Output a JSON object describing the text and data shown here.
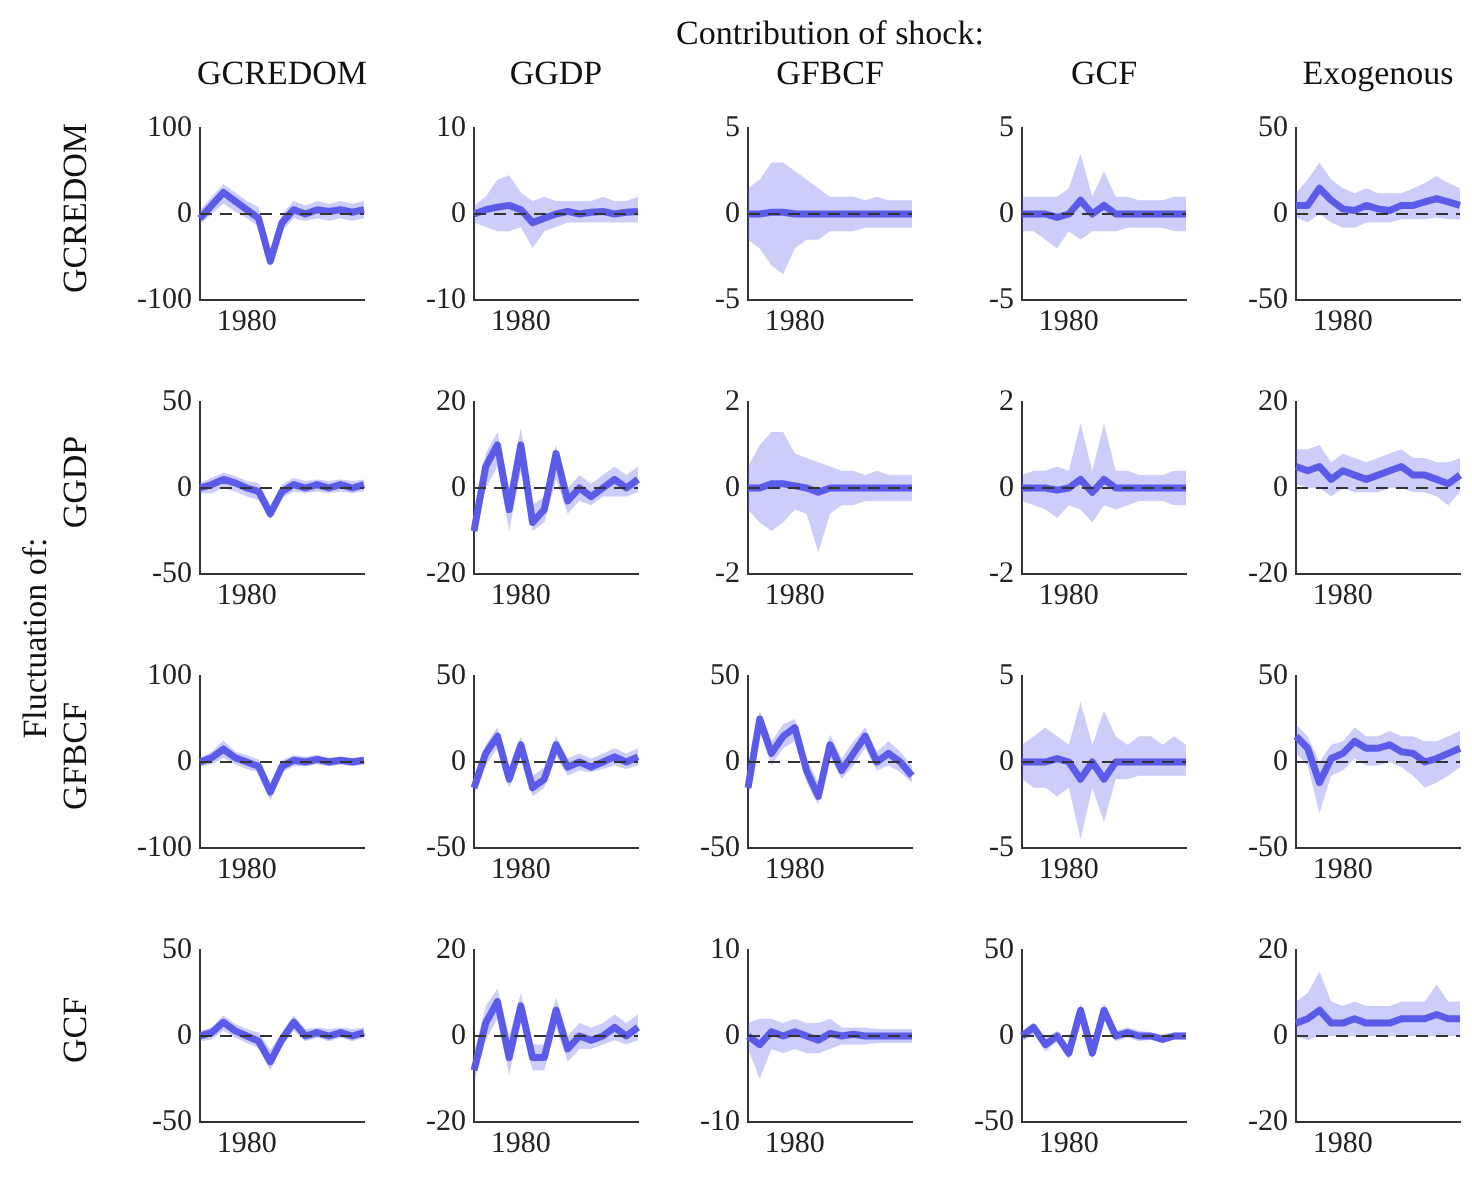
{
  "chart_data": [
    {
      "type": "line",
      "title": "GCREDOM",
      "ylabel": "GCREDOM",
      "categories": [
        null,
        null,
        null,
        null,
        "1980",
        null,
        null,
        null,
        null,
        null,
        null,
        null,
        null,
        null,
        null
      ],
      "ylim": [
        -100,
        100
      ],
      "yticks": [
        -100,
        0,
        100
      ],
      "ref_lines": [
        {
          "axis": "y",
          "value": 0,
          "color": "#333333",
          "line_style": "dashed"
        }
      ],
      "series": [
        {
          "color": "#5b5bea",
          "values": [
            -5,
            10,
            25,
            15,
            5,
            -5,
            -55,
            -10,
            5,
            0,
            5,
            3,
            5,
            2,
            5
          ],
          "lower": [
            -12,
            0,
            12,
            3,
            -5,
            -15,
            -60,
            -20,
            -5,
            -8,
            -5,
            -8,
            -5,
            -8,
            -5
          ],
          "upper": [
            5,
            20,
            35,
            25,
            15,
            8,
            -45,
            0,
            15,
            10,
            15,
            12,
            15,
            12,
            15
          ]
        }
      ]
    },
    {
      "type": "line",
      "title": "GGDP",
      "categories": [
        null,
        null,
        null,
        null,
        "1980",
        null,
        null,
        null,
        null,
        null,
        null,
        null,
        null,
        null,
        null
      ],
      "ylim": [
        -10,
        10
      ],
      "yticks": [
        -10,
        0,
        10
      ],
      "ref_lines": [
        {
          "axis": "y",
          "value": 0,
          "color": "#333333",
          "line_style": "dashed"
        }
      ],
      "series": [
        {
          "color": "#5b5bea",
          "values": [
            0,
            0.5,
            0.8,
            1,
            0.5,
            -1,
            -0.5,
            0,
            0.3,
            0,
            0.2,
            0.3,
            0,
            0.2,
            0.3
          ],
          "lower": [
            -1,
            -1.5,
            -2,
            -2,
            -1.5,
            -4,
            -2,
            -1.5,
            -1,
            -1,
            -1,
            -1,
            -1,
            -1,
            -1
          ],
          "upper": [
            1,
            2,
            4,
            4.5,
            2.5,
            1.5,
            2,
            1.5,
            1.5,
            1.5,
            1.5,
            2,
            1.5,
            1.5,
            2
          ]
        }
      ]
    },
    {
      "type": "line",
      "title": "GFBCF",
      "annotations": [
        "Contribution of shock:"
      ],
      "categories": [
        null,
        null,
        null,
        null,
        "1980",
        null,
        null,
        null,
        null,
        null,
        null,
        null,
        null,
        null,
        null
      ],
      "ylim": [
        -5,
        5
      ],
      "yticks": [
        -5,
        0,
        5
      ],
      "ref_lines": [
        {
          "axis": "y",
          "value": 0,
          "color": "#333333",
          "line_style": "dashed"
        }
      ],
      "series": [
        {
          "color": "#5b5bea",
          "values": [
            0,
            0,
            0.1,
            0.1,
            0,
            0,
            0,
            0,
            0,
            0,
            0,
            0,
            0,
            0,
            0
          ],
          "lower": [
            -1.5,
            -2,
            -3,
            -3.5,
            -2,
            -1.5,
            -1.5,
            -1,
            -1,
            -1,
            -0.8,
            -0.8,
            -0.8,
            -0.8,
            -0.8
          ],
          "upper": [
            1.5,
            2,
            3,
            3,
            2.5,
            2,
            1.5,
            1,
            1,
            1,
            0.8,
            1,
            0.8,
            0.8,
            0.8
          ]
        }
      ]
    },
    {
      "type": "line",
      "title": "GCF",
      "categories": [
        null,
        null,
        null,
        null,
        "1980",
        null,
        null,
        null,
        null,
        null,
        null,
        null,
        null,
        null,
        null
      ],
      "ylim": [
        -5,
        5
      ],
      "yticks": [
        -5,
        0,
        5
      ],
      "ref_lines": [
        {
          "axis": "y",
          "value": 0,
          "color": "#333333",
          "line_style": "dashed"
        }
      ],
      "series": [
        {
          "color": "#5b5bea",
          "values": [
            0,
            0,
            0,
            -0.2,
            0,
            0.8,
            0,
            0.5,
            0,
            0,
            0,
            0,
            0,
            0,
            0
          ],
          "lower": [
            -1,
            -1,
            -1.5,
            -2,
            -1,
            -1.5,
            -1,
            -1,
            -1,
            -0.8,
            -0.8,
            -0.8,
            -0.8,
            -1,
            -1
          ],
          "upper": [
            1,
            1,
            1,
            1,
            1.5,
            3.5,
            1,
            2.5,
            1,
            1,
            0.8,
            0.8,
            0.8,
            1,
            1
          ]
        }
      ]
    },
    {
      "type": "line",
      "title": "Exogenous",
      "categories": [
        null,
        null,
        null,
        null,
        "1980",
        null,
        null,
        null,
        null,
        null,
        null,
        null,
        null,
        null,
        null
      ],
      "ylim": [
        -50,
        50
      ],
      "yticks": [
        -50,
        0,
        50
      ],
      "ref_lines": [
        {
          "axis": "y",
          "value": 0,
          "color": "#333333",
          "line_style": "dashed"
        }
      ],
      "series": [
        {
          "color": "#5b5bea",
          "values": [
            5,
            5,
            15,
            8,
            3,
            2,
            5,
            3,
            2,
            5,
            5,
            7,
            9,
            7,
            5
          ],
          "lower": [
            -2,
            -5,
            0,
            -5,
            -8,
            -8,
            -5,
            -5,
            -5,
            -3,
            -3,
            -3,
            -2,
            -3,
            -3
          ],
          "upper": [
            12,
            20,
            30,
            20,
            15,
            12,
            15,
            12,
            12,
            12,
            15,
            18,
            22,
            18,
            15
          ]
        }
      ]
    },
    {
      "type": "line",
      "ylabel": "GGDP",
      "annotations": [
        "Fluctuation of:"
      ],
      "categories": [
        null,
        null,
        null,
        null,
        "1980",
        null,
        null,
        null,
        null,
        null,
        null,
        null,
        null,
        null,
        null
      ],
      "ylim": [
        -50,
        50
      ],
      "yticks": [
        -50,
        0,
        50
      ],
      "ref_lines": [
        {
          "axis": "y",
          "value": 0,
          "color": "#333333",
          "line_style": "dashed"
        }
      ],
      "series": [
        {
          "color": "#5b5bea",
          "values": [
            0,
            2,
            5,
            3,
            0,
            -2,
            -15,
            -2,
            2,
            0,
            2,
            0,
            2,
            0,
            2
          ],
          "lower": [
            -3,
            -3,
            0,
            -2,
            -5,
            -7,
            -18,
            -6,
            -2,
            -3,
            -2,
            -3,
            -2,
            -3,
            -2
          ],
          "upper": [
            3,
            6,
            9,
            7,
            4,
            3,
            -10,
            2,
            6,
            4,
            5,
            4,
            5,
            4,
            5
          ]
        }
      ]
    },
    {
      "type": "line",
      "categories": [
        null,
        null,
        null,
        null,
        "1980",
        null,
        null,
        null,
        null,
        null,
        null,
        null,
        null,
        null,
        null
      ],
      "ylim": [
        -20,
        20
      ],
      "yticks": [
        -20,
        0,
        20
      ],
      "ref_lines": [
        {
          "axis": "y",
          "value": 0,
          "color": "#333333",
          "line_style": "dashed"
        }
      ],
      "series": [
        {
          "color": "#5b5bea",
          "values": [
            -10,
            5,
            10,
            -5,
            10,
            -8,
            -5,
            8,
            -3,
            0,
            -2,
            0,
            2,
            0,
            2
          ],
          "lower": [
            -12,
            0,
            5,
            -10,
            4,
            -10,
            -8,
            2,
            -6,
            -3,
            -4,
            -2,
            -2,
            -2,
            -1
          ],
          "upper": [
            -6,
            8,
            13,
            0,
            14,
            -4,
            -2,
            10,
            0,
            3,
            1,
            3,
            5,
            3,
            5
          ]
        }
      ]
    },
    {
      "type": "line",
      "categories": [
        null,
        null,
        null,
        null,
        "1980",
        null,
        null,
        null,
        null,
        null,
        null,
        null,
        null,
        null,
        null
      ],
      "ylim": [
        -2,
        2
      ],
      "yticks": [
        -2,
        0,
        2
      ],
      "ref_lines": [
        {
          "axis": "y",
          "value": 0,
          "color": "#333333",
          "line_style": "dashed"
        }
      ],
      "series": [
        {
          "color": "#5b5bea",
          "values": [
            0,
            0,
            0.1,
            0.1,
            0.05,
            0,
            -0.1,
            0,
            0,
            0,
            0,
            0,
            0,
            0,
            0
          ],
          "lower": [
            -0.5,
            -0.8,
            -1,
            -0.8,
            -0.5,
            -0.6,
            -1.5,
            -0.6,
            -0.4,
            -0.4,
            -0.3,
            -0.3,
            -0.3,
            -0.3,
            -0.3
          ],
          "upper": [
            0.5,
            1,
            1.3,
            1.3,
            0.8,
            0.7,
            0.6,
            0.5,
            0.4,
            0.4,
            0.3,
            0.4,
            0.3,
            0.3,
            0.3
          ]
        }
      ]
    },
    {
      "type": "line",
      "categories": [
        null,
        null,
        null,
        null,
        "1980",
        null,
        null,
        null,
        null,
        null,
        null,
        null,
        null,
        null,
        null
      ],
      "ylim": [
        -2,
        2
      ],
      "yticks": [
        -2,
        0,
        2
      ],
      "ref_lines": [
        {
          "axis": "y",
          "value": 0,
          "color": "#333333",
          "line_style": "dashed"
        }
      ],
      "series": [
        {
          "color": "#5b5bea",
          "values": [
            0,
            0,
            0,
            -0.05,
            0,
            0.2,
            -0.1,
            0.2,
            0,
            0,
            0,
            0,
            0,
            0,
            0
          ],
          "lower": [
            -0.3,
            -0.4,
            -0.5,
            -0.7,
            -0.4,
            -0.5,
            -0.8,
            -0.4,
            -0.5,
            -0.4,
            -0.3,
            -0.3,
            -0.3,
            -0.4,
            -0.4
          ],
          "upper": [
            0.3,
            0.4,
            0.4,
            0.5,
            0.4,
            1.5,
            0.4,
            1.5,
            0.4,
            0.4,
            0.3,
            0.3,
            0.3,
            0.4,
            0.4
          ]
        }
      ]
    },
    {
      "type": "line",
      "categories": [
        null,
        null,
        null,
        null,
        "1980",
        null,
        null,
        null,
        null,
        null,
        null,
        null,
        null,
        null,
        null
      ],
      "ylim": [
        -20,
        20
      ],
      "yticks": [
        -20,
        0,
        20
      ],
      "ref_lines": [
        {
          "axis": "y",
          "value": 0,
          "color": "#333333",
          "line_style": "dashed"
        }
      ],
      "series": [
        {
          "color": "#5b5bea",
          "values": [
            5,
            4,
            5,
            2,
            4,
            3,
            2,
            3,
            4,
            5,
            3,
            3,
            2,
            1,
            3
          ],
          "lower": [
            1,
            0,
            0,
            -2,
            0,
            -1,
            -1,
            -1,
            0,
            0,
            -1,
            -1,
            -2,
            -4,
            -1
          ],
          "upper": [
            9,
            9,
            10,
            6,
            8,
            7,
            6,
            7,
            8,
            9,
            7,
            7,
            6,
            6,
            7
          ]
        }
      ]
    },
    {
      "type": "line",
      "ylabel": "GFBCF",
      "categories": [
        null,
        null,
        null,
        null,
        "1980",
        null,
        null,
        null,
        null,
        null,
        null,
        null,
        null,
        null,
        null
      ],
      "ylim": [
        -100,
        100
      ],
      "yticks": [
        -100,
        0,
        100
      ],
      "ref_lines": [
        {
          "axis": "y",
          "value": 0,
          "color": "#333333",
          "line_style": "dashed"
        }
      ],
      "series": [
        {
          "color": "#5b5bea",
          "values": [
            0,
            5,
            15,
            5,
            0,
            -5,
            -35,
            -5,
            2,
            0,
            3,
            0,
            2,
            0,
            2
          ],
          "lower": [
            -5,
            -3,
            5,
            -3,
            -8,
            -12,
            -45,
            -12,
            -5,
            -5,
            -3,
            -5,
            -3,
            -5,
            -3
          ],
          "upper": [
            5,
            12,
            25,
            12,
            8,
            3,
            -25,
            2,
            8,
            6,
            8,
            5,
            6,
            5,
            6
          ]
        }
      ]
    },
    {
      "type": "line",
      "categories": [
        null,
        null,
        null,
        null,
        "1980",
        null,
        null,
        null,
        null,
        null,
        null,
        null,
        null,
        null,
        null
      ],
      "ylim": [
        -50,
        50
      ],
      "yticks": [
        -50,
        0,
        50
      ],
      "ref_lines": [
        {
          "axis": "y",
          "value": 0,
          "color": "#333333",
          "line_style": "dashed"
        }
      ],
      "series": [
        {
          "color": "#5b5bea",
          "values": [
            -15,
            5,
            15,
            -10,
            10,
            -15,
            -10,
            10,
            -3,
            0,
            -3,
            0,
            3,
            0,
            3
          ],
          "lower": [
            -20,
            -2,
            8,
            -15,
            3,
            -20,
            -15,
            3,
            -8,
            -5,
            -6,
            -4,
            -2,
            -4,
            -2
          ],
          "upper": [
            -8,
            10,
            20,
            -3,
            15,
            -8,
            -3,
            15,
            2,
            5,
            2,
            5,
            8,
            5,
            8
          ]
        }
      ]
    },
    {
      "type": "line",
      "categories": [
        null,
        null,
        null,
        null,
        "1980",
        null,
        null,
        null,
        null,
        null,
        null,
        null,
        null,
        null,
        null
      ],
      "ylim": [
        -50,
        50
      ],
      "yticks": [
        -50,
        0,
        50
      ],
      "ref_lines": [
        {
          "axis": "y",
          "value": 0,
          "color": "#333333",
          "line_style": "dashed"
        }
      ],
      "series": [
        {
          "color": "#5b5bea",
          "values": [
            -15,
            25,
            5,
            15,
            20,
            -5,
            -20,
            10,
            -5,
            5,
            15,
            0,
            5,
            0,
            -8
          ],
          "lower": [
            -22,
            18,
            -2,
            8,
            12,
            -12,
            -25,
            3,
            -10,
            -2,
            8,
            -5,
            -2,
            -6,
            -12
          ],
          "upper": [
            -8,
            30,
            12,
            22,
            25,
            2,
            -12,
            16,
            2,
            12,
            20,
            6,
            12,
            6,
            -2
          ]
        }
      ]
    },
    {
      "type": "line",
      "categories": [
        null,
        null,
        null,
        null,
        "1980",
        null,
        null,
        null,
        null,
        null,
        null,
        null,
        null,
        null,
        null
      ],
      "ylim": [
        -5,
        5
      ],
      "yticks": [
        -5,
        0,
        5
      ],
      "ref_lines": [
        {
          "axis": "y",
          "value": 0,
          "color": "#333333",
          "line_style": "dashed"
        }
      ],
      "series": [
        {
          "color": "#5b5bea",
          "values": [
            0,
            0,
            0,
            0.2,
            0,
            -1,
            0,
            -1,
            0,
            0,
            0,
            0,
            0,
            0,
            0
          ],
          "lower": [
            -1,
            -1.5,
            -1.5,
            -2,
            -1.5,
            -4.5,
            -1.5,
            -3.5,
            -1,
            -1,
            -0.8,
            -0.8,
            -0.8,
            -0.8,
            -0.8
          ],
          "upper": [
            1,
            1.5,
            2,
            1.5,
            1,
            3.5,
            1,
            3,
            1.5,
            1,
            1.5,
            1.5,
            1,
            1.5,
            1
          ]
        }
      ]
    },
    {
      "type": "line",
      "categories": [
        null,
        null,
        null,
        null,
        "1980",
        null,
        null,
        null,
        null,
        null,
        null,
        null,
        null,
        null,
        null
      ],
      "ylim": [
        -50,
        50
      ],
      "yticks": [
        -50,
        0,
        50
      ],
      "ref_lines": [
        {
          "axis": "y",
          "value": 0,
          "color": "#333333",
          "line_style": "dashed"
        }
      ],
      "series": [
        {
          "color": "#5b5bea",
          "values": [
            15,
            8,
            -12,
            2,
            5,
            12,
            8,
            8,
            10,
            6,
            5,
            0,
            2,
            5,
            8
          ],
          "lower": [
            5,
            -2,
            -30,
            -8,
            -5,
            2,
            -2,
            -2,
            0,
            -3,
            -8,
            -15,
            -12,
            -8,
            -3
          ],
          "upper": [
            22,
            15,
            0,
            10,
            12,
            20,
            15,
            15,
            18,
            15,
            15,
            12,
            12,
            15,
            18
          ]
        }
      ]
    },
    {
      "type": "line",
      "ylabel": "GCF",
      "categories": [
        null,
        null,
        null,
        null,
        "1980",
        null,
        null,
        null,
        null,
        null,
        null,
        null,
        null,
        null,
        null
      ],
      "ylim": [
        -50,
        50
      ],
      "yticks": [
        -50,
        0,
        50
      ],
      "ref_lines": [
        {
          "axis": "y",
          "value": 0,
          "color": "#333333",
          "line_style": "dashed"
        }
      ],
      "series": [
        {
          "color": "#5b5bea",
          "values": [
            0,
            2,
            8,
            3,
            0,
            -3,
            -15,
            -2,
            8,
            0,
            2,
            0,
            2,
            0,
            2
          ],
          "lower": [
            -3,
            -2,
            3,
            -1,
            -4,
            -7,
            -20,
            -6,
            3,
            -3,
            -1,
            -3,
            -1,
            -3,
            -1
          ],
          "upper": [
            3,
            5,
            12,
            7,
            4,
            2,
            -8,
            2,
            12,
            4,
            5,
            4,
            5,
            4,
            5
          ]
        }
      ]
    },
    {
      "type": "line",
      "categories": [
        null,
        null,
        null,
        null,
        "1980",
        null,
        null,
        null,
        null,
        null,
        null,
        null,
        null,
        null,
        null
      ],
      "ylim": [
        -20,
        20
      ],
      "yticks": [
        -20,
        0,
        20
      ],
      "ref_lines": [
        {
          "axis": "y",
          "value": 0,
          "color": "#333333",
          "line_style": "dashed"
        }
      ],
      "series": [
        {
          "color": "#5b5bea",
          "values": [
            -8,
            3,
            8,
            -5,
            7,
            -5,
            -5,
            6,
            -3,
            0,
            -1,
            0,
            2,
            0,
            2
          ],
          "lower": [
            -11,
            -1,
            4,
            -9,
            3,
            -8,
            -8,
            2,
            -6,
            -3,
            -3,
            -2,
            -1,
            -2,
            -1
          ],
          "upper": [
            -4,
            7,
            11,
            0,
            10,
            -2,
            -2,
            9,
            0,
            3,
            2,
            3,
            5,
            3,
            5
          ]
        }
      ]
    },
    {
      "type": "line",
      "categories": [
        null,
        null,
        null,
        null,
        "1980",
        null,
        null,
        null,
        null,
        null,
        null,
        null,
        null,
        null,
        null
      ],
      "ylim": [
        -10,
        10
      ],
      "yticks": [
        -10,
        0,
        10
      ],
      "ref_lines": [
        {
          "axis": "y",
          "value": 0,
          "color": "#333333",
          "line_style": "dashed"
        }
      ],
      "series": [
        {
          "color": "#5b5bea",
          "values": [
            0,
            -1,
            0.5,
            0,
            0.5,
            0,
            -0.5,
            0.3,
            0,
            0.2,
            0,
            0,
            0,
            0,
            0
          ],
          "lower": [
            -1.5,
            -5,
            -1.5,
            -2,
            -1.5,
            -2,
            -2,
            -1.5,
            -1,
            -1,
            -1,
            -0.8,
            -0.8,
            -0.8,
            -0.8
          ],
          "upper": [
            1.5,
            2,
            2,
            1.5,
            2,
            1.5,
            1.5,
            2,
            1,
            1,
            1,
            0.8,
            0.8,
            0.8,
            0.8
          ]
        }
      ]
    },
    {
      "type": "line",
      "categories": [
        null,
        null,
        null,
        null,
        "1980",
        null,
        null,
        null,
        null,
        null,
        null,
        null,
        null,
        null,
        null
      ],
      "ylim": [
        -50,
        50
      ],
      "yticks": [
        -50,
        0,
        50
      ],
      "ref_lines": [
        {
          "axis": "y",
          "value": 0,
          "color": "#333333",
          "line_style": "dashed"
        }
      ],
      "series": [
        {
          "color": "#5b5bea",
          "values": [
            0,
            5,
            -5,
            0,
            -10,
            15,
            -10,
            15,
            0,
            2,
            0,
            0,
            -2,
            0,
            0
          ],
          "lower": [
            -3,
            1,
            -9,
            -3,
            -14,
            10,
            -14,
            10,
            -3,
            -1,
            -3,
            -2,
            -4,
            -2,
            -2
          ],
          "upper": [
            3,
            8,
            -1,
            3,
            -6,
            19,
            -6,
            19,
            3,
            5,
            3,
            2,
            1,
            2,
            2
          ]
        }
      ]
    },
    {
      "type": "line",
      "categories": [
        null,
        null,
        null,
        null,
        "1980",
        null,
        null,
        null,
        null,
        null,
        null,
        null,
        null,
        null,
        null
      ],
      "ylim": [
        -20,
        20
      ],
      "yticks": [
        -20,
        0,
        20
      ],
      "ref_lines": [
        {
          "axis": "y",
          "value": 0,
          "color": "#333333",
          "line_style": "dashed"
        }
      ],
      "series": [
        {
          "color": "#5b5bea",
          "values": [
            3,
            4,
            6,
            3,
            3,
            4,
            3,
            3,
            3,
            4,
            4,
            4,
            5,
            4,
            4
          ],
          "lower": [
            0,
            -1,
            0,
            0,
            0,
            0,
            0,
            0,
            0,
            0,
            0,
            0,
            0,
            0,
            0
          ],
          "upper": [
            8,
            10,
            15,
            8,
            7,
            8,
            7,
            7,
            7,
            8,
            8,
            8,
            12,
            8,
            8
          ]
        }
      ]
    }
  ]
}
